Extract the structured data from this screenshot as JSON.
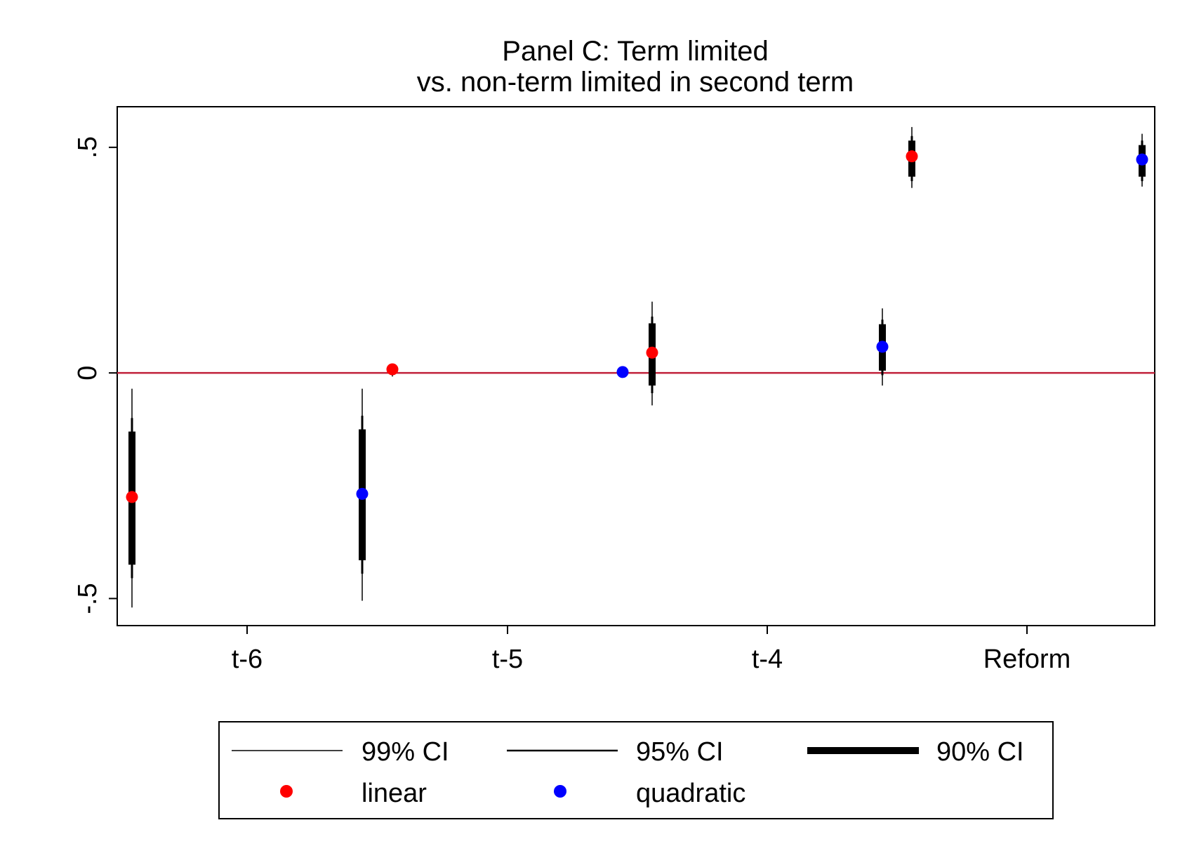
{
  "chart_data": {
    "type": "scatter",
    "title": [
      "Panel C: Term limited",
      "vs. non-term limited in second term"
    ],
    "xlabel": "",
    "ylabel": "",
    "categories": [
      "t-6",
      "t-5",
      "t-4",
      "Reform"
    ],
    "y_ticks": [
      {
        "value": -0.5,
        "label": "-.5"
      },
      {
        "value": 0,
        "label": "0"
      },
      {
        "value": 0.5,
        "label": ".5"
      }
    ],
    "ylim": [
      -0.56,
      0.59
    ],
    "reference_line": {
      "y": 0,
      "color": "#c0203a"
    },
    "legend": {
      "position": "bottom",
      "items": [
        {
          "label": "99% CI",
          "kind": "line",
          "weight": "thin"
        },
        {
          "label": "95% CI",
          "kind": "line",
          "weight": "medium"
        },
        {
          "label": "90% CI",
          "kind": "line",
          "weight": "thick"
        },
        {
          "label": "linear",
          "kind": "marker",
          "color": "#ff0000"
        },
        {
          "label": "quadratic",
          "kind": "marker",
          "color": "#0000ff"
        }
      ]
    },
    "series": [
      {
        "name": "linear",
        "color": "#ff0000",
        "offset": -0.4,
        "points": [
          {
            "category": "t-6",
            "estimate": -0.275,
            "ci90": [
              -0.425,
              -0.13
            ],
            "ci95": [
              -0.455,
              -0.1
            ],
            "ci99": [
              -0.52,
              -0.035
            ]
          },
          {
            "category": "t-5",
            "estimate": 0.008,
            "ci90": [
              0.003,
              0.013
            ],
            "ci95": [
              0.0,
              0.016
            ],
            "ci99": [
              -0.008,
              0.02
            ]
          },
          {
            "category": "t-4",
            "estimate": 0.045,
            "ci90": [
              -0.028,
              0.11
            ],
            "ci95": [
              -0.045,
              0.125
            ],
            "ci99": [
              -0.072,
              0.158
            ]
          },
          {
            "category": "Reform",
            "estimate": 0.48,
            "ci90": [
              0.435,
              0.515
            ],
            "ci95": [
              0.425,
              0.525
            ],
            "ci99": [
              0.41,
              0.545
            ]
          }
        ]
      },
      {
        "name": "quadratic",
        "color": "#0000ff",
        "offset": 0.4,
        "points": [
          {
            "category": "t-6",
            "estimate": -0.268,
            "ci90": [
              -0.415,
              -0.125
            ],
            "ci95": [
              -0.445,
              -0.095
            ],
            "ci99": [
              -0.505,
              -0.035
            ]
          },
          {
            "category": "t-5",
            "estimate": 0.002,
            "ci90": [
              -0.001,
              0.005
            ],
            "ci95": [
              -0.003,
              0.007
            ],
            "ci99": [
              -0.005,
              0.009
            ]
          },
          {
            "category": "t-4",
            "estimate": 0.058,
            "ci90": [
              0.005,
              0.108
            ],
            "ci95": [
              -0.005,
              0.118
            ],
            "ci99": [
              -0.028,
              0.143
            ]
          },
          {
            "category": "Reform",
            "estimate": 0.473,
            "ci90": [
              0.435,
              0.505
            ],
            "ci95": [
              0.425,
              0.515
            ],
            "ci99": [
              0.413,
              0.53
            ]
          }
        ]
      }
    ]
  }
}
